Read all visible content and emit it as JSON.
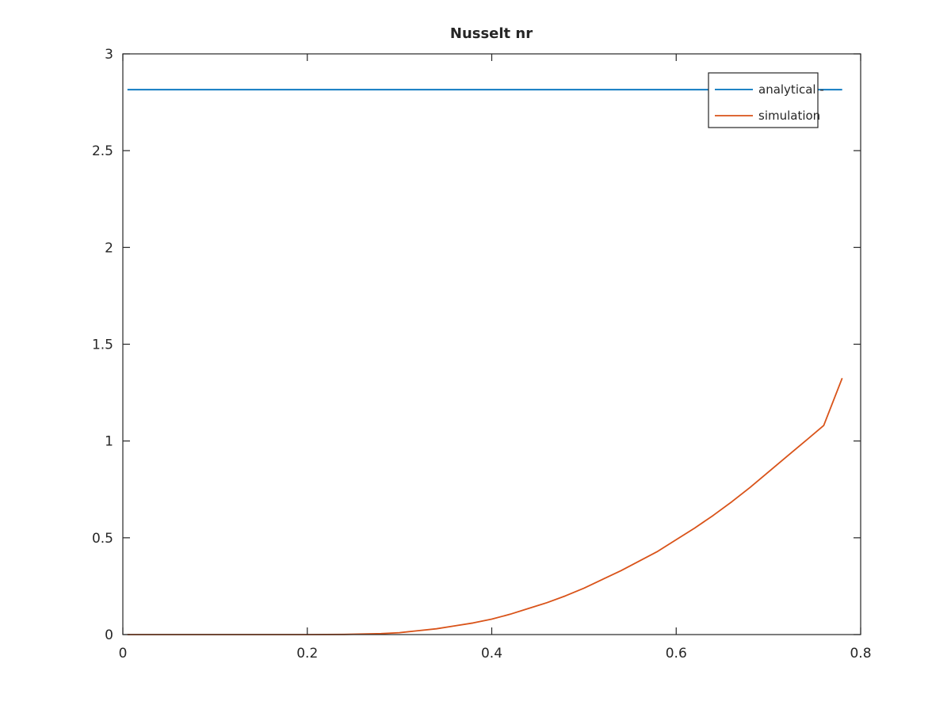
{
  "chart_data": {
    "type": "line",
    "title": "Nusselt nr",
    "xlabel": "",
    "ylabel": "",
    "xlim": [
      0,
      0.8
    ],
    "ylim": [
      0,
      3
    ],
    "xticks": [
      0,
      0.2,
      0.4,
      0.6,
      0.8
    ],
    "xtick_labels": [
      "0",
      "0.2",
      "0.4",
      "0.6",
      "0.8"
    ],
    "yticks": [
      0,
      0.5,
      1,
      1.5,
      2,
      2.5,
      3
    ],
    "ytick_labels": [
      "0",
      "0.5",
      "1",
      "1.5",
      "2",
      "2.5",
      "3"
    ],
    "grid": false,
    "legend_position": "top-right",
    "series": [
      {
        "name": "analytical -",
        "color": "#0072BD",
        "x": [
          0.005,
          0.78
        ],
        "y": [
          2.815,
          2.815
        ]
      },
      {
        "name": "simulation",
        "color": "#D95319",
        "x": [
          0.005,
          0.1,
          0.2,
          0.24,
          0.28,
          0.3,
          0.32,
          0.34,
          0.36,
          0.38,
          0.4,
          0.42,
          0.44,
          0.46,
          0.48,
          0.5,
          0.52,
          0.54,
          0.56,
          0.58,
          0.6,
          0.62,
          0.64,
          0.66,
          0.68,
          0.7,
          0.72,
          0.74,
          0.76,
          0.78
        ],
        "y": [
          0,
          0,
          0,
          0.001,
          0.005,
          0.01,
          0.02,
          0.03,
          0.045,
          0.06,
          0.08,
          0.105,
          0.135,
          0.165,
          0.2,
          0.24,
          0.285,
          0.33,
          0.38,
          0.43,
          0.49,
          0.55,
          0.615,
          0.685,
          0.76,
          0.84,
          0.92,
          1.0,
          1.08,
          1.325
        ]
      }
    ]
  }
}
